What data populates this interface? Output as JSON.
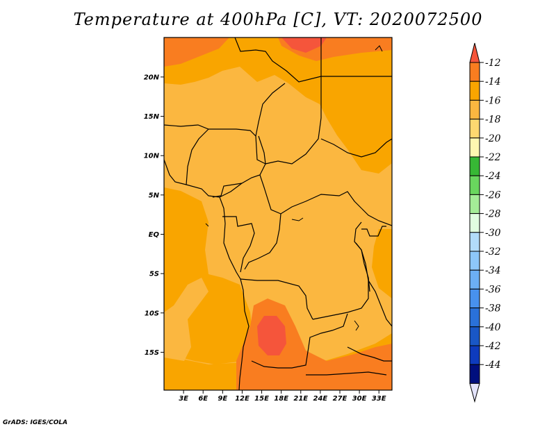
{
  "title": "Temperature at 400hPa [C], VT: 2020072500",
  "credit": "GrADS: IGES/COLA",
  "map": {
    "lon_range": [
      0,
      35
    ],
    "lat_range": [
      -20,
      24.5
    ],
    "x_ticks": [
      "3E",
      "6E",
      "9E",
      "12E",
      "15E",
      "18E",
      "21E",
      "24E",
      "27E",
      "30E",
      "33E"
    ],
    "y_ticks": [
      "20N",
      "15N",
      "10N",
      "5N",
      "EQ",
      "5S",
      "10S",
      "15S"
    ],
    "dominant_field_color": "#fbb740"
  },
  "colorbar": {
    "labels": [
      "-12",
      "-14",
      "-16",
      "-18",
      "-20",
      "-22",
      "-24",
      "-26",
      "-28",
      "-30",
      "-32",
      "-34",
      "-36",
      "-38",
      "-40",
      "-42",
      "-44"
    ],
    "colors": [
      "#f5553b",
      "#f97d20",
      "#f9a500",
      "#fbb740",
      "#fdd870",
      "#fef7b1",
      "#37b835",
      "#69d65e",
      "#a4ec97",
      "#e1fde0",
      "#b2dcfa",
      "#8dc7fa",
      "#6caff5",
      "#4891ee",
      "#2a71d9",
      "#1957c6",
      "#0e3bbd",
      "#000f7e",
      "#e3e3fb"
    ]
  }
}
